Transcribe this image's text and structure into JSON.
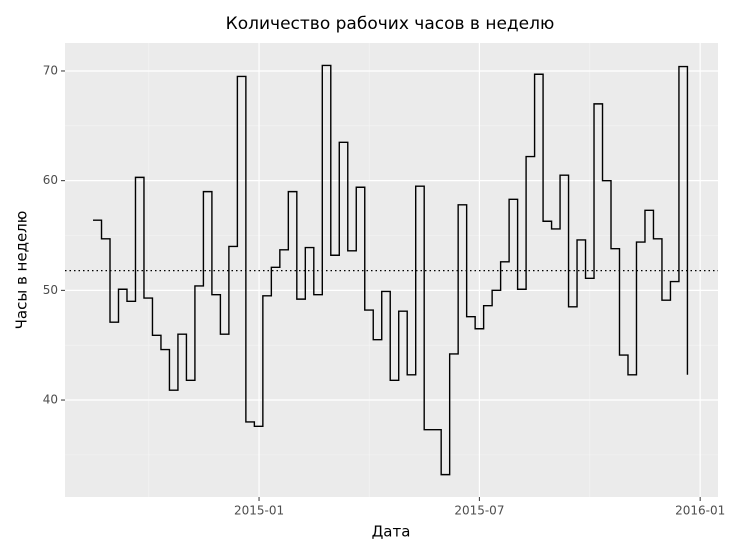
{
  "chart_data": {
    "type": "step",
    "title": "Количество рабочих часов в неделю",
    "x_label": "Дата",
    "y_label": "Часы в неделю",
    "x": [
      0,
      1,
      2,
      3,
      4,
      5,
      6,
      7,
      8,
      9,
      10,
      11,
      12,
      13,
      14,
      15,
      16,
      17,
      18,
      19,
      20,
      21,
      22,
      23,
      24,
      25,
      26,
      27,
      28,
      29,
      30,
      31,
      32,
      33,
      34,
      35,
      36,
      37,
      38,
      39,
      40,
      41,
      42,
      43,
      44,
      45,
      46,
      47,
      48,
      49,
      50,
      51,
      52,
      53,
      54,
      55,
      56,
      57,
      58,
      59,
      60,
      61,
      62,
      63,
      64,
      65,
      66,
      67,
      68,
      69,
      70
    ],
    "values": [
      56.4,
      54.7,
      47.1,
      50.1,
      49.0,
      60.3,
      49.3,
      45.9,
      44.6,
      40.9,
      46.0,
      41.8,
      50.4,
      59.0,
      49.6,
      46.0,
      54.0,
      69.5,
      38.0,
      37.6,
      49.5,
      52.1,
      53.7,
      59.0,
      49.2,
      53.9,
      49.6,
      70.5,
      53.2,
      63.5,
      53.6,
      59.4,
      48.2,
      45.5,
      49.9,
      41.8,
      48.1,
      42.3,
      59.5,
      37.3,
      37.3,
      33.2,
      44.2,
      57.8,
      47.6,
      46.5,
      48.6,
      50.0,
      52.6,
      58.3,
      50.1,
      62.2,
      69.7,
      56.3,
      55.6,
      60.5,
      48.5,
      54.6,
      51.1,
      67.0,
      60.0,
      53.8,
      44.1,
      42.3,
      54.4,
      57.3,
      54.7,
      49.1,
      50.8,
      70.4,
      42.3
    ],
    "color": "#000000",
    "hline": 51.8,
    "xlim": [
      -3.3,
      73.6
    ],
    "ylim": [
      31.16,
      72.55
    ],
    "xticks": [
      {
        "value": 19.55,
        "label": "2015-01"
      },
      {
        "value": 45.5,
        "label": "2015-07"
      },
      {
        "value": 71.5,
        "label": "2016-01"
      }
    ],
    "yticks": [
      40,
      50,
      60,
      70
    ],
    "grid": true
  }
}
